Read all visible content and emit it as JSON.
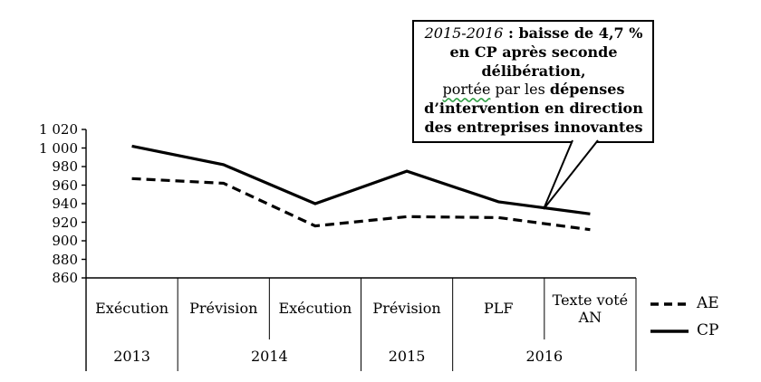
{
  "chart_data": {
    "type": "line",
    "categories": [
      "Exécution",
      "Prévision",
      "Exécution",
      "Prévision",
      "PLF",
      "Texte voté AN"
    ],
    "year_groups": [
      {
        "label": "2013",
        "span": 1
      },
      {
        "label": "2014",
        "span": 2
      },
      {
        "label": "2015",
        "span": 1
      },
      {
        "label": "2016",
        "span": 2
      }
    ],
    "series": [
      {
        "name": "AE",
        "style": "dashed",
        "values": [
          967,
          962,
          916,
          926,
          925,
          912
        ]
      },
      {
        "name": "CP",
        "style": "solid",
        "values": [
          1002,
          982,
          940,
          975,
          942,
          929
        ]
      }
    ],
    "ylim": [
      860,
      1020
    ],
    "ytick_step": 20,
    "yticks": [
      "1 020",
      "1 000",
      "980",
      "960",
      "940",
      "920",
      "900",
      "880",
      "860"
    ],
    "grid": "off",
    "legend_position": "right",
    "legend": [
      {
        "label": "AE",
        "style": "dashed"
      },
      {
        "label": "CP",
        "style": "solid"
      }
    ],
    "annotation": {
      "segments": [
        {
          "text": "2015-2016",
          "style": "italic"
        },
        {
          "text": " : ",
          "style": "bold"
        },
        {
          "text": "baisse de 4,7 % en CP après seconde délibération,",
          "style": "bold"
        },
        {
          "text": "\n",
          "style": "normal"
        },
        {
          "text": "portée",
          "style": "wavy"
        },
        {
          "text": " par les ",
          "style": "normal"
        },
        {
          "text": "dépenses d’intervention en direction des entreprises innovantes",
          "style": "bold"
        }
      ]
    },
    "colors": {
      "line": "#000000",
      "background": "#ffffff",
      "annotation_border": "#000000"
    }
  }
}
